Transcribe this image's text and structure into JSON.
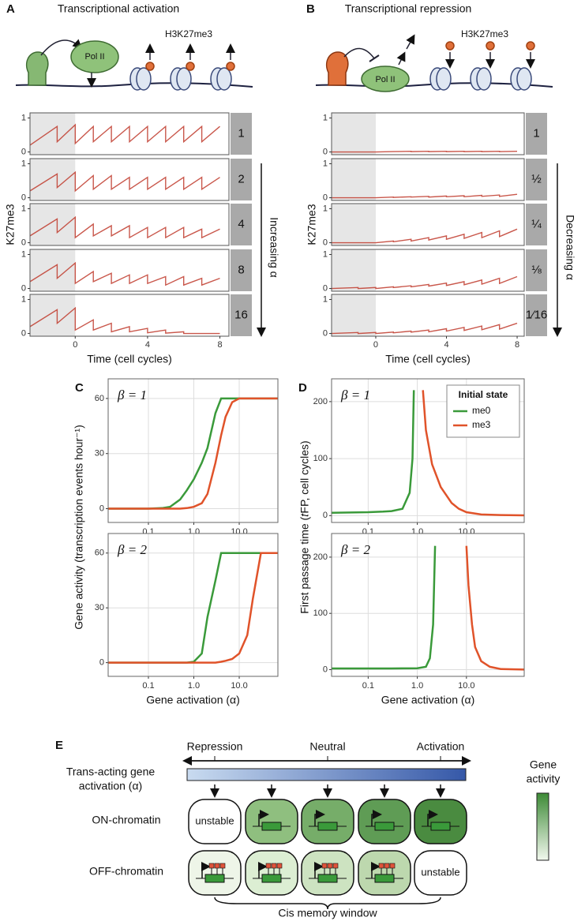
{
  "chart_data": [
    {
      "type": "facet-line",
      "panel": "A",
      "title": "Transcriptional activation",
      "diagram_labels": [
        "Pol II",
        "H3K27me3"
      ],
      "y_label": "K27me3",
      "x_label": "Time (cell cycles)",
      "annotation": "Increasing α",
      "shade_until": 0,
      "x": [
        -2.5,
        -1,
        -1,
        0,
        0,
        1,
        1,
        2,
        2,
        3,
        3,
        4,
        4,
        5,
        5,
        6,
        6,
        7,
        7,
        8
      ],
      "xlim": [
        -2.5,
        8.5
      ],
      "xticks": [
        0,
        4,
        8
      ],
      "ylim": [
        -0.08,
        1.15
      ],
      "yticks": [
        0,
        1
      ],
      "series": [
        {
          "name": "1",
          "color": "#c0392b",
          "values": [
            0.2,
            0.75,
            0.3,
            0.8,
            0.25,
            0.75,
            0.3,
            0.75,
            0.3,
            0.75,
            0.3,
            0.75,
            0.3,
            0.75,
            0.3,
            0.75,
            0.3,
            0.75,
            0.3,
            0.75
          ]
        },
        {
          "name": "2",
          "color": "#c0392b",
          "values": [
            0.2,
            0.7,
            0.3,
            0.75,
            0.2,
            0.65,
            0.25,
            0.65,
            0.25,
            0.6,
            0.25,
            0.6,
            0.25,
            0.6,
            0.25,
            0.6,
            0.25,
            0.6,
            0.25,
            0.6
          ]
        },
        {
          "name": "4",
          "color": "#c0392b",
          "values": [
            0.2,
            0.7,
            0.3,
            0.75,
            0.15,
            0.55,
            0.2,
            0.5,
            0.2,
            0.5,
            0.15,
            0.45,
            0.15,
            0.45,
            0.15,
            0.45,
            0.15,
            0.4,
            0.15,
            0.4
          ]
        },
        {
          "name": "8",
          "color": "#c0392b",
          "values": [
            0.2,
            0.7,
            0.3,
            0.75,
            0.15,
            0.5,
            0.2,
            0.45,
            0.15,
            0.4,
            0.15,
            0.4,
            0.15,
            0.35,
            0.1,
            0.35,
            0.1,
            0.3,
            0.1,
            0.3
          ]
        },
        {
          "name": "16",
          "color": "#c0392b",
          "values": [
            0.2,
            0.7,
            0.3,
            0.75,
            0.1,
            0.4,
            0.1,
            0.3,
            0.05,
            0.2,
            0.05,
            0.15,
            0.02,
            0.1,
            0.01,
            0.05,
            0,
            0,
            0,
            0
          ]
        }
      ]
    },
    {
      "type": "facet-line",
      "panel": "B",
      "title": "Transcriptional repression",
      "diagram_labels": [
        "Pol II",
        "H3K27me3"
      ],
      "y_label": "K27me3",
      "x_label": "Time (cell cycles)",
      "annotation": "Decreasing α",
      "shade_until": 0,
      "x": [
        -2.5,
        -1,
        -1,
        0,
        0,
        1,
        1,
        2,
        2,
        3,
        3,
        4,
        4,
        5,
        5,
        6,
        6,
        7,
        7,
        8
      ],
      "xlim": [
        -2.5,
        8.4
      ],
      "xticks": [
        0,
        4,
        8
      ],
      "ylim": [
        -0.08,
        1.15
      ],
      "yticks": [
        0,
        1
      ],
      "series": [
        {
          "name": "1",
          "color": "#c0392b",
          "values": [
            0,
            0,
            0,
            0,
            0,
            0.01,
            0.01,
            0.02,
            0.01,
            0.02,
            0.01,
            0.02,
            0.01,
            0.02,
            0.01,
            0.02,
            0.01,
            0.02,
            0.01,
            0.02
          ]
        },
        {
          "name": "½",
          "color": "#c0392b",
          "values": [
            0,
            0,
            0,
            0,
            0,
            0.02,
            0.01,
            0.03,
            0.02,
            0.04,
            0.02,
            0.05,
            0.03,
            0.06,
            0.03,
            0.07,
            0.04,
            0.08,
            0.04,
            0.1
          ]
        },
        {
          "name": "¼",
          "color": "#c0392b",
          "values": [
            0,
            0,
            0,
            0,
            0,
            0.05,
            0.03,
            0.1,
            0.05,
            0.15,
            0.08,
            0.2,
            0.1,
            0.25,
            0.13,
            0.3,
            0.15,
            0.35,
            0.18,
            0.4
          ]
        },
        {
          "name": "⅛",
          "color": "#c0392b",
          "values": [
            0,
            0.03,
            0,
            0.03,
            0,
            0.05,
            0.03,
            0.08,
            0.05,
            0.12,
            0.07,
            0.16,
            0.09,
            0.2,
            0.11,
            0.25,
            0.13,
            0.3,
            0.15,
            0.35
          ]
        },
        {
          "name": "1⁄16",
          "color": "#c0392b",
          "values": [
            0,
            0.03,
            0,
            0.03,
            0,
            0.04,
            0.02,
            0.07,
            0.04,
            0.1,
            0.05,
            0.14,
            0.07,
            0.18,
            0.09,
            0.22,
            0.11,
            0.26,
            0.13,
            0.3
          ]
        }
      ]
    },
    {
      "type": "line",
      "panel": "C",
      "annotation": "β = 1",
      "y_label": "Gene activity (transcription events hour⁻¹)",
      "x_scale": "log",
      "grid": true,
      "x": [
        0.013,
        0.1,
        0.2,
        0.3,
        0.5,
        0.7,
        1,
        1.5,
        2,
        3,
        4,
        5,
        7,
        10,
        15,
        20,
        30,
        50,
        71
      ],
      "xlim": [
        0.013,
        71
      ],
      "xticks": [
        0.1,
        {
          "value": 1,
          "label": "1.0"
        },
        {
          "value": 10,
          "label": "10.0"
        }
      ],
      "ylim": [
        -7.5,
        70.7
      ],
      "yticks": [
        0,
        30,
        60
      ],
      "series": [
        {
          "color": "#3a9a3a",
          "values": [
            0,
            0,
            0.3,
            1,
            5,
            10,
            16,
            25,
            33,
            52,
            60,
            60,
            60,
            60,
            60,
            60,
            60,
            60,
            60
          ]
        },
        {
          "color": "#e0532a",
          "values": [
            0,
            0,
            0,
            0,
            0,
            0.3,
            1,
            3,
            8,
            25,
            40,
            50,
            58,
            60,
            60,
            60,
            60,
            60,
            60
          ]
        }
      ]
    },
    {
      "type": "line",
      "annotation": "β = 2",
      "x_label": "Gene activation (α)",
      "x_scale": "log",
      "grid": true,
      "x": [
        0.013,
        0.1,
        0.2,
        0.3,
        0.5,
        0.7,
        1,
        1.5,
        2,
        3,
        4,
        5,
        7,
        10,
        15,
        20,
        30,
        50,
        71
      ],
      "xlim": [
        0.013,
        71
      ],
      "xticks": [
        0.1,
        {
          "value": 1,
          "label": "1.0"
        },
        {
          "value": 10,
          "label": "10.0"
        }
      ],
      "ylim": [
        -7.5,
        70.7
      ],
      "yticks": [
        0,
        30,
        60
      ],
      "series": [
        {
          "color": "#3a9a3a",
          "values": [
            0,
            0,
            0,
            0,
            0,
            0,
            0.5,
            5,
            25,
            45,
            60,
            60,
            60,
            60,
            60,
            60,
            60,
            60,
            60
          ]
        },
        {
          "color": "#e0532a",
          "values": [
            0,
            0,
            0,
            0,
            0,
            0,
            0,
            0,
            0,
            0,
            0.5,
            1,
            2,
            5,
            15,
            35,
            60,
            60,
            60
          ]
        }
      ]
    },
    {
      "type": "line",
      "panel": "D",
      "annotation": "β = 1",
      "y_label": "First passage time (𝑡FP, cell cycles)",
      "x_scale": "log",
      "grid": true,
      "legend": "top-right",
      "legend_title": "Initial state",
      "x": [
        0.018,
        0.1,
        0.2,
        0.3,
        0.5,
        0.7,
        0.8,
        0.85,
        1.3,
        1.5,
        2,
        3,
        5,
        7,
        10,
        20,
        50,
        150
      ],
      "xlim": [
        0.018,
        150
      ],
      "xticks": [
        0.1,
        {
          "value": 1,
          "label": "1.0"
        },
        {
          "value": 10,
          "label": "10.0"
        }
      ],
      "ylim": [
        -12,
        240
      ],
      "yticks": [
        0,
        100,
        200
      ],
      "series": [
        {
          "name": "me0",
          "color": "#3a9a3a",
          "values": [
            5,
            6,
            7,
            8,
            12,
            40,
            100,
            220,
            null,
            null,
            null,
            null,
            null,
            null,
            null,
            null,
            null,
            null
          ]
        },
        {
          "name": "me3",
          "color": "#e0532a",
          "values": [
            null,
            null,
            null,
            null,
            null,
            null,
            null,
            null,
            220,
            150,
            90,
            50,
            22,
            12,
            6,
            2,
            1,
            0.5
          ]
        }
      ]
    },
    {
      "type": "line",
      "annotation": "β = 2",
      "x_label": "Gene activation (α)",
      "x_scale": "log",
      "grid": true,
      "x": [
        0.018,
        0.1,
        0.3,
        1,
        1.5,
        1.8,
        2.1,
        2.3,
        10,
        11,
        13,
        15,
        20,
        30,
        50,
        150
      ],
      "xlim": [
        0.018,
        150
      ],
      "xticks": [
        0.1,
        {
          "value": 1,
          "label": "1.0"
        },
        {
          "value": 10,
          "label": "10.0"
        }
      ],
      "ylim": [
        -12,
        242
      ],
      "yticks": [
        0,
        100,
        200
      ],
      "series": [
        {
          "color": "#3a9a3a",
          "values": [
            2,
            2,
            2,
            2.5,
            5,
            20,
            80,
            220,
            null,
            null,
            null,
            null,
            null,
            null,
            null,
            null
          ]
        },
        {
          "color": "#e0532a",
          "values": [
            null,
            null,
            null,
            null,
            null,
            null,
            null,
            null,
            220,
            150,
            80,
            40,
            15,
            5,
            1,
            0
          ]
        }
      ]
    }
  ],
  "panel_e": {
    "label": "E",
    "scale": [
      "Repression",
      "Neutral",
      "Activation"
    ],
    "axis_label": [
      "Trans-acting gene",
      "activation (α)"
    ],
    "rows": [
      "ON-chromatin",
      "OFF-chromatin"
    ],
    "unstable": [
      "unstable",
      "unstable"
    ],
    "gene_activity": [
      "Gene",
      "activity"
    ],
    "window": "Cis memory window"
  }
}
